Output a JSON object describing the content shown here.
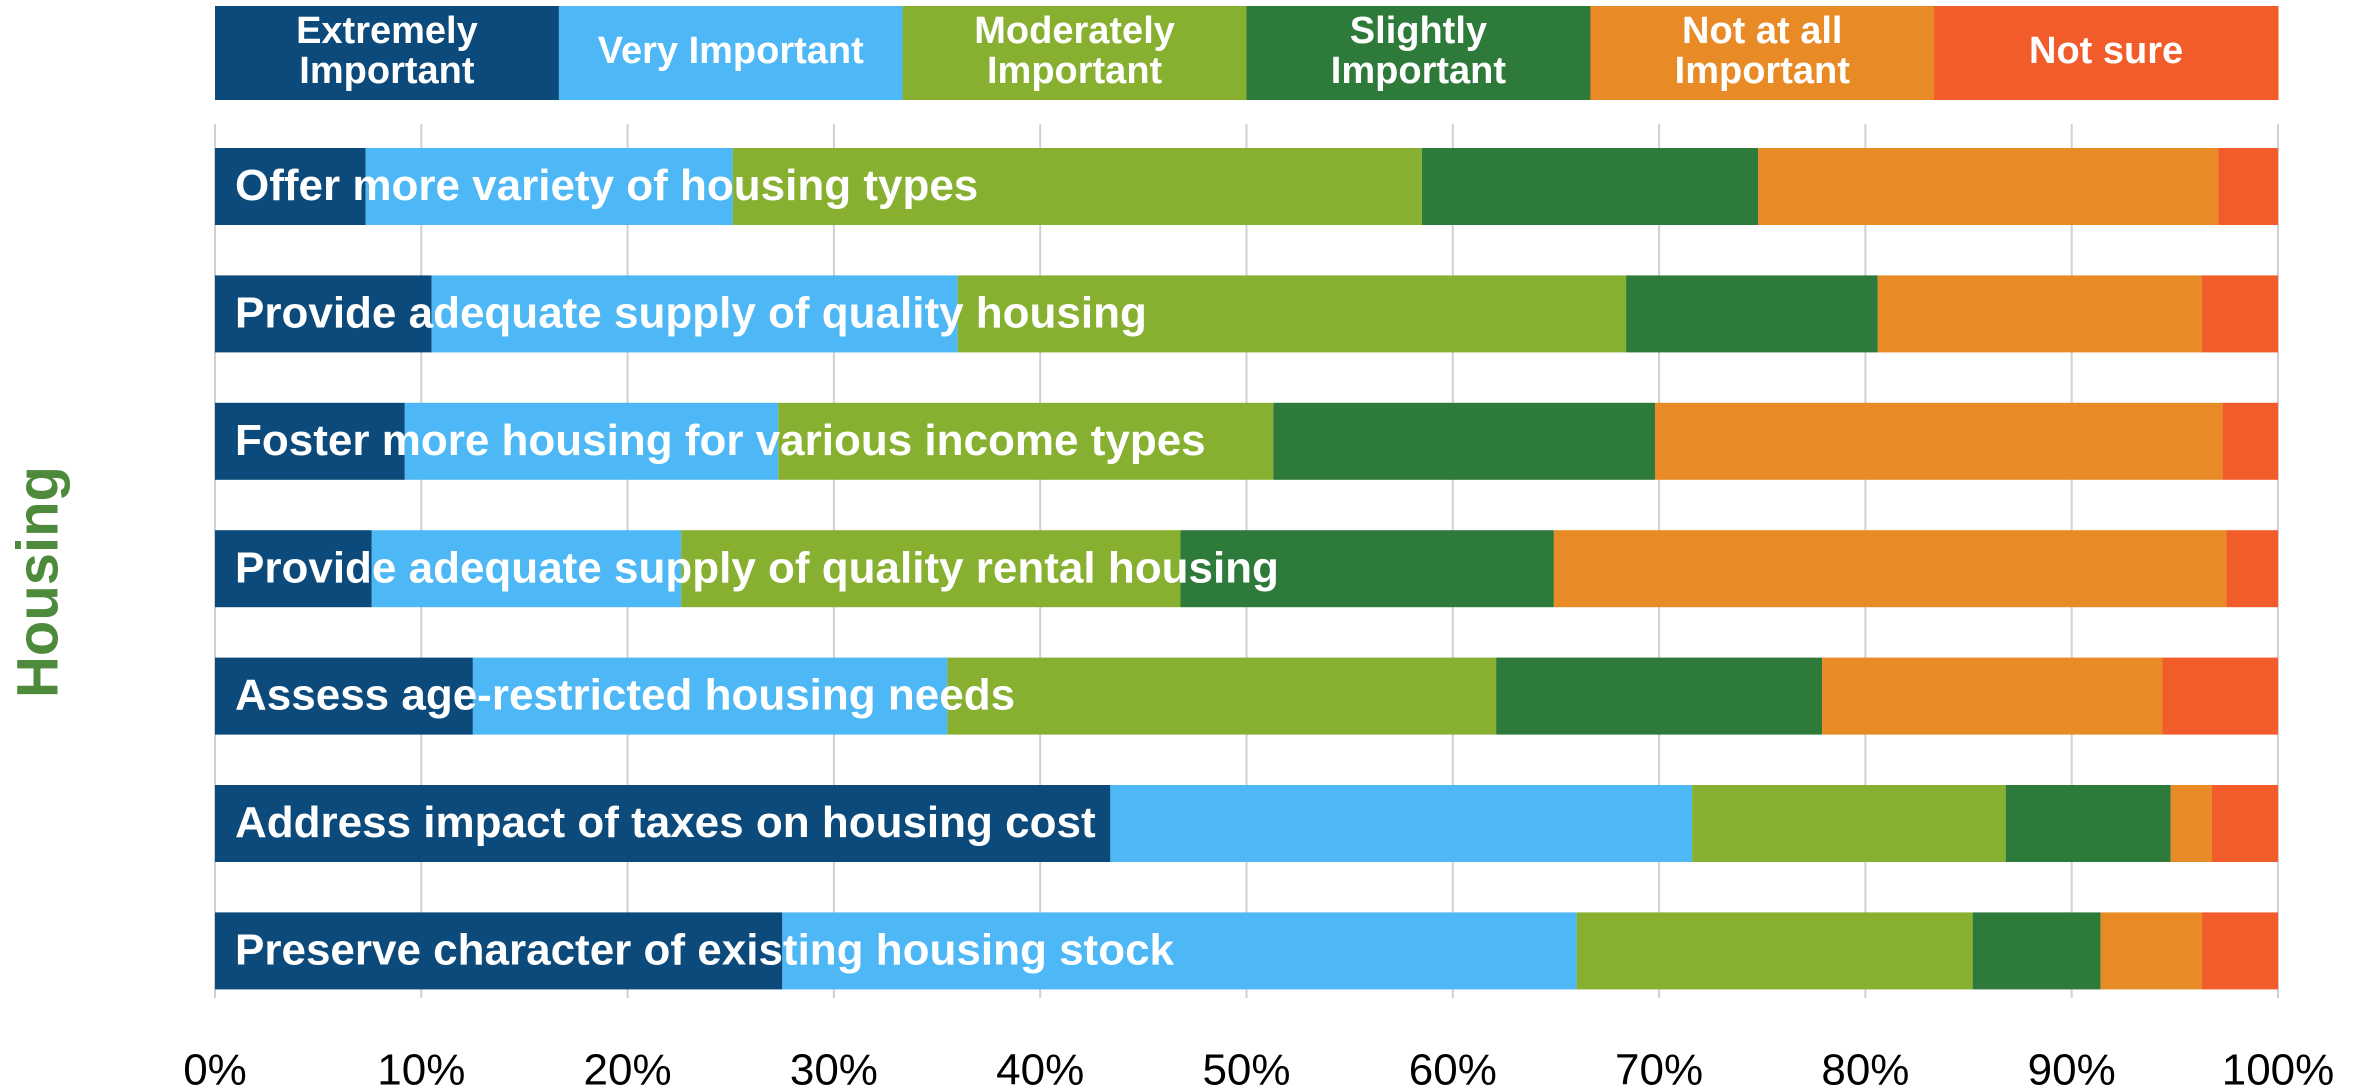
{
  "chart_data": {
    "type": "stacked_barh",
    "y_label": "Housing",
    "categories": [
      "Offer more variety of housing types",
      "Provide adequate supply of quality housing",
      "Foster more housing for various income types",
      "Provide adequate supply of quality rental housing",
      "Assess age-restricted housing needs",
      "Address impact of taxes on housing cost",
      "Preserve character of existing housing stock"
    ],
    "series": [
      {
        "name": "Extremely\nImportant",
        "color": "#0b4a7a",
        "values": [
          7.3,
          10.5,
          9.2,
          7.6,
          12.5,
          43.4,
          27.5
        ]
      },
      {
        "name": "Very Important",
        "color": "#4db8f5",
        "values": [
          17.8,
          25.5,
          18.1,
          15.0,
          23.0,
          28.2,
          38.5
        ]
      },
      {
        "name": "Moderately\nImportant",
        "color": "#88b030",
        "values": [
          33.4,
          32.4,
          24.0,
          24.2,
          26.6,
          15.2,
          19.2
        ]
      },
      {
        "name": "Slightly\nImportant",
        "color": "#2e7a3a",
        "values": [
          16.3,
          12.2,
          18.5,
          18.1,
          15.8,
          8.0,
          6.2
        ]
      },
      {
        "name": "Not at all\nImportant",
        "color": "#e88a25",
        "values": [
          22.3,
          15.7,
          27.5,
          32.6,
          16.5,
          2.0,
          4.9
        ]
      },
      {
        "name": "Not sure",
        "color": "#f25c2a",
        "values": [
          2.9,
          3.7,
          2.7,
          2.5,
          5.6,
          3.2,
          3.7
        ]
      }
    ],
    "xlim": [
      0,
      100
    ],
    "xticks": [
      {
        "value": 0,
        "label": "0%"
      },
      {
        "value": 10,
        "label": "10%"
      },
      {
        "value": 20,
        "label": "20%"
      },
      {
        "value": 30,
        "label": "30%"
      },
      {
        "value": 40,
        "label": "40%"
      },
      {
        "value": 50,
        "label": "50%"
      },
      {
        "value": 60,
        "label": "60%"
      },
      {
        "value": 70,
        "label": "70%"
      },
      {
        "value": 80,
        "label": "80%"
      },
      {
        "value": 90,
        "label": "90%"
      },
      {
        "value": 100,
        "label": "100%"
      }
    ],
    "grid": true,
    "legend": "top"
  }
}
